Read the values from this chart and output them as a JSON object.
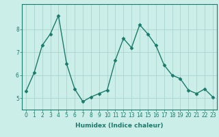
{
  "x": [
    0,
    1,
    2,
    3,
    4,
    5,
    6,
    7,
    8,
    9,
    10,
    11,
    12,
    13,
    14,
    15,
    16,
    17,
    18,
    19,
    20,
    21,
    22,
    23
  ],
  "y": [
    5.3,
    6.1,
    7.3,
    7.8,
    8.6,
    6.5,
    5.4,
    4.85,
    5.05,
    5.2,
    5.35,
    6.65,
    7.6,
    7.2,
    8.2,
    7.8,
    7.3,
    6.45,
    6.0,
    5.85,
    5.35,
    5.2,
    5.4,
    5.05
  ],
  "line_color": "#1a7a6a",
  "marker": "D",
  "markersize": 2.5,
  "linewidth": 1.0,
  "bg_color": "#cceee8",
  "grid_color": "#aad4ce",
  "xlabel": "Humidex (Indice chaleur)",
  "xlim": [
    -0.5,
    23.5
  ],
  "ylim": [
    4.5,
    9.1
  ],
  "yticks": [
    5,
    6,
    7,
    8
  ],
  "xtick_labels": [
    "0",
    "1",
    "2",
    "3",
    "4",
    "5",
    "6",
    "7",
    "8",
    "9",
    "10",
    "11",
    "12",
    "13",
    "14",
    "15",
    "16",
    "17",
    "18",
    "19",
    "20",
    "21",
    "22",
    "23"
  ],
  "xlabel_fontsize": 6.5,
  "tick_fontsize": 5.5
}
